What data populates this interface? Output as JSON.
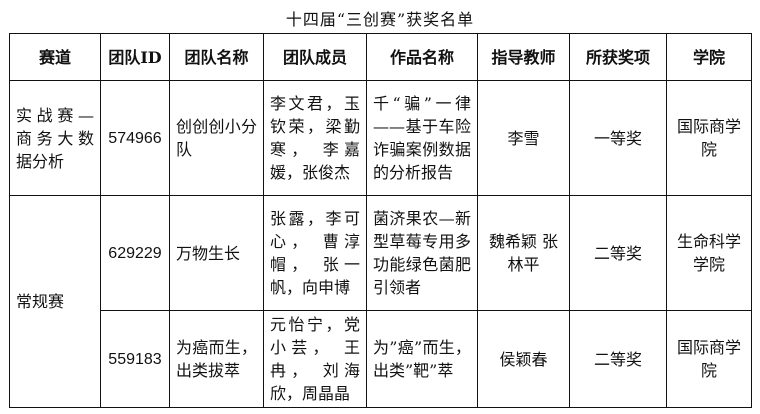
{
  "title": "十四届“三创赛”获奖名单",
  "headers": [
    "赛道",
    "团队ID",
    "团队名称",
    "团队成员",
    "作品名称",
    "指导教师",
    "所获奖项",
    "学院"
  ],
  "rows": [
    {
      "track": "实战赛—商务大数据分析",
      "id": "574966",
      "team": "创创创小分队",
      "members": "李文君，玉钦荣，梁勤寒， 李嘉媛，张俊杰",
      "work": "千“骗”一律——基于车险诈骗案例数据的分析报告",
      "advisor": "李雪",
      "award": "一等奖",
      "college": "国际商学院"
    },
    {
      "track": "常规赛",
      "id": "629229",
      "team": "万物生长",
      "members": "张露，李可心， 曹淳帽， 张一帆，向申博",
      "work": "菌济果农—新型草莓专用多功能绿色菌肥引领者",
      "advisor": "魏希颖 张林平",
      "award": "二等奖",
      "college": "生命科学学院"
    },
    {
      "id": "559183",
      "team": "为癌而生，出类拔萃",
      "members": "元怡宁，党小芸， 王冉， 刘海欣，周晶晶",
      "work": "为”癌”而生，出类”靶”萃",
      "advisor": "侯颖春",
      "award": "二等奖",
      "college": "国际商学院"
    }
  ]
}
